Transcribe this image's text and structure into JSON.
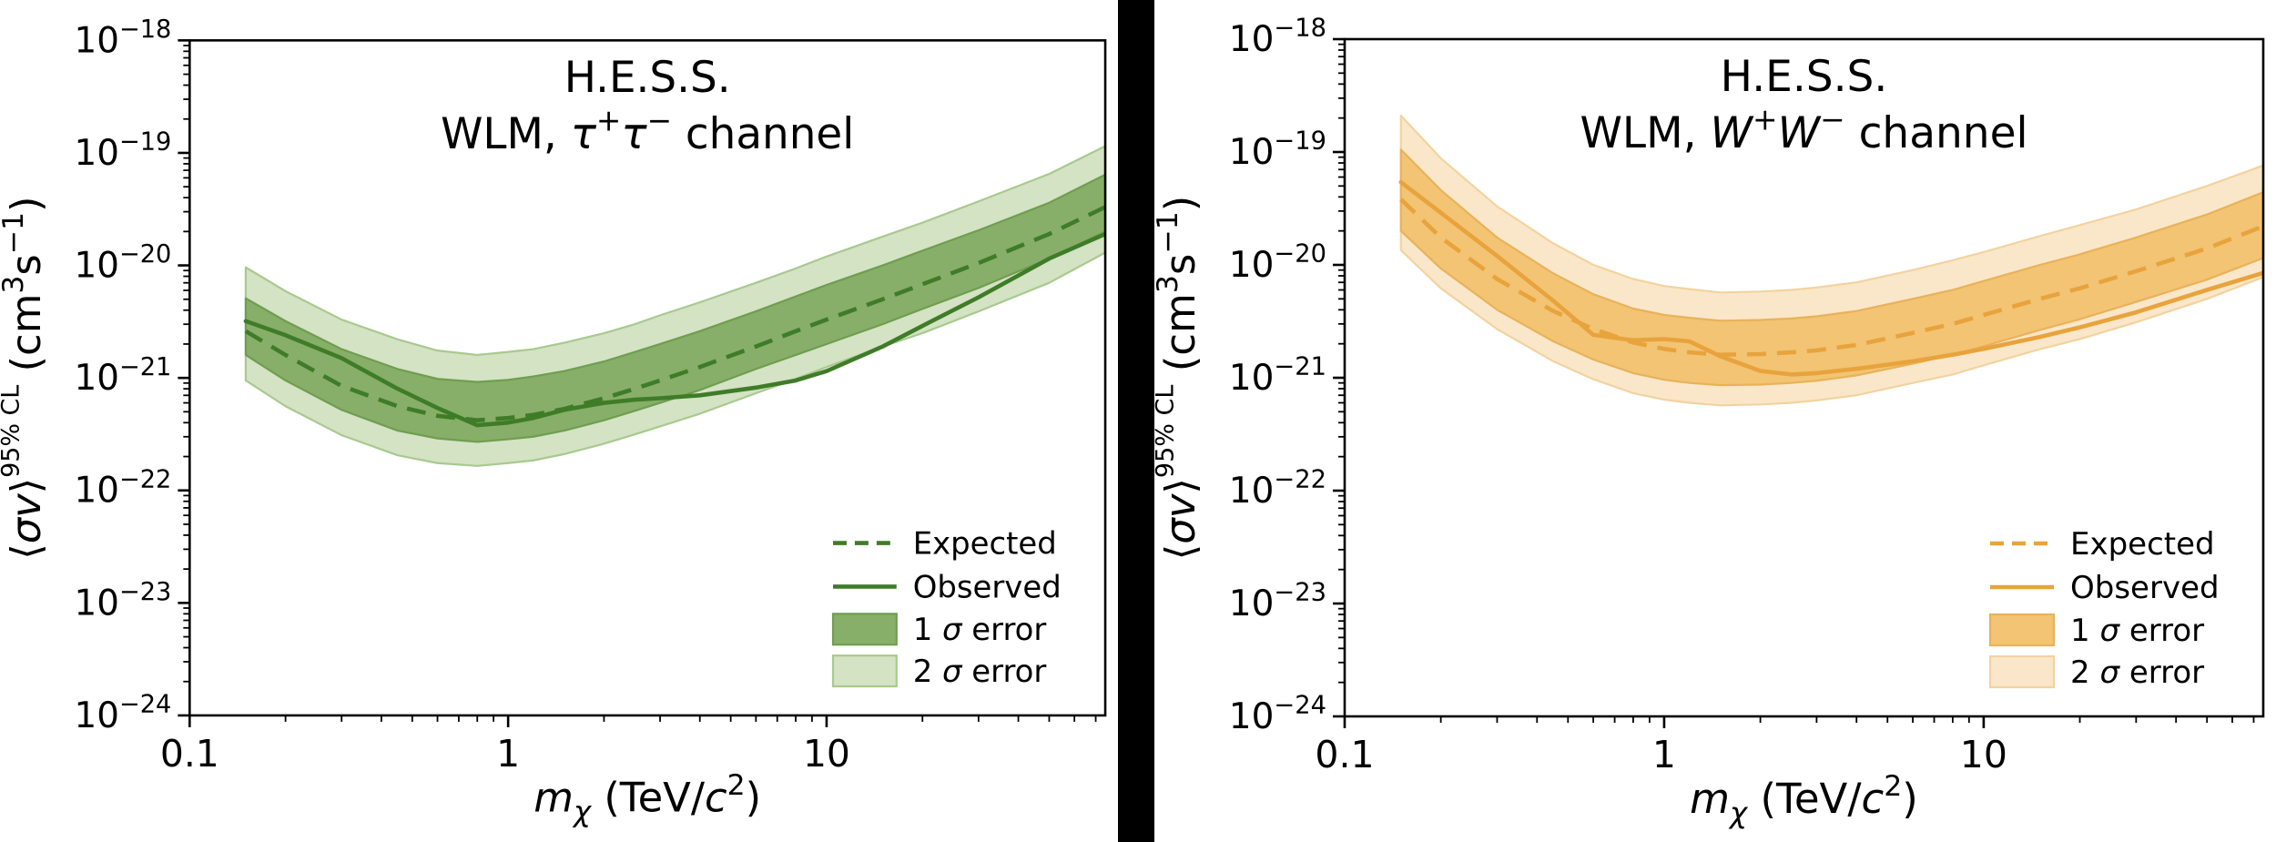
{
  "figure": {
    "background": "#ffffff",
    "divider_color": "#000000"
  },
  "shared": {
    "xlim": [
      0.1,
      75
    ],
    "ylim_exp": [
      -24,
      -18
    ],
    "x_ticks": [
      {
        "value": 0.1,
        "label": "0.1"
      },
      {
        "value": 1,
        "label": "1"
      },
      {
        "value": 10,
        "label": "10"
      }
    ],
    "y_ticks": [
      {
        "exp": -18,
        "base": "10",
        "sup": "−18"
      },
      {
        "exp": -19,
        "base": "10",
        "sup": "−19"
      },
      {
        "exp": -20,
        "base": "10",
        "sup": "−20"
      },
      {
        "exp": -21,
        "base": "10",
        "sup": "−21"
      },
      {
        "exp": -22,
        "base": "10",
        "sup": "−22"
      },
      {
        "exp": -23,
        "base": "10",
        "sup": "−23"
      },
      {
        "exp": -24,
        "base": "10",
        "sup": "−24"
      }
    ],
    "xlabel_parts": [
      {
        "t": "m",
        "i": 1
      },
      {
        "t": "χ",
        "i": 1,
        "sub": 1
      },
      {
        "t": " (TeV/"
      },
      {
        "t": "c",
        "i": 1
      },
      {
        "t": "2",
        "sup": 1
      },
      {
        "t": ")"
      }
    ],
    "ylabel_parts": [
      {
        "t": "⟨"
      },
      {
        "t": "σv",
        "i": 1
      },
      {
        "t": "⟩"
      },
      {
        "t": "95% CL",
        "sup": 1,
        "small": 1
      },
      {
        "t": " (cm"
      },
      {
        "t": "3",
        "sup": 1
      },
      {
        "t": "s"
      },
      {
        "t": "−1",
        "sup": 1
      },
      {
        "t": ")"
      }
    ],
    "legend_labels": [
      "Expected",
      "Observed",
      "1 σ error",
      "2 σ error"
    ],
    "axis_color": "#000000"
  },
  "chart_data": [
    {
      "type": "line",
      "id": "tau-tau",
      "title": "H.E.S.S.",
      "subtitle": "WLM, τ⁺τ⁻ channel",
      "title_line2_parts": [
        {
          "t": "WLM, "
        },
        {
          "t": "τ",
          "i": 1
        },
        {
          "t": "+",
          "sup": 1
        },
        {
          "t": "τ",
          "i": 1
        },
        {
          "t": "−",
          "sup": 1
        },
        {
          "t": "  channel"
        }
      ],
      "xlabel": "m_chi (TeV/c^2)",
      "ylabel": "<sigma v>^95% CL (cm^3 s^-1)",
      "legend_position": "lower right",
      "grid": false,
      "x_log": true,
      "y_log": true,
      "colors": {
        "line": "#3f7c28",
        "sigma1_fill": "#87af69",
        "sigma1_edge": "#6f9e4f",
        "sigma2_fill": "#d3e3c4",
        "sigma2_edge": "#a9c98f"
      },
      "x_mass_tev": [
        0.15,
        0.2,
        0.3,
        0.45,
        0.6,
        0.8,
        1.0,
        1.2,
        1.5,
        2,
        2.5,
        3,
        4,
        6,
        8,
        10,
        15,
        20,
        30,
        50,
        75
      ],
      "series": [
        {
          "name": "Expected",
          "style": "dashed",
          "values": [
            2.6e-21,
            1.6e-21,
            8.5e-22,
            5.6e-22,
            4.6e-22,
            4.2e-22,
            4.4e-22,
            4.7e-22,
            5.3e-22,
            6.6e-22,
            8e-22,
            9.5e-22,
            1.25e-21,
            1.9e-21,
            2.6e-21,
            3.3e-21,
            5e-21,
            6.8e-21,
            1.05e-20,
            1.9e-20,
            3.3e-20
          ]
        },
        {
          "name": "Observed",
          "style": "solid",
          "values": [
            3.2e-21,
            2.4e-21,
            1.5e-21,
            8e-22,
            5.4e-22,
            3.8e-22,
            4e-22,
            4.4e-22,
            5.2e-22,
            6e-22,
            6.4e-22,
            6.6e-22,
            7e-22,
            8.2e-22,
            9.5e-22,
            1.15e-21,
            1.9e-21,
            2.9e-21,
            5.2e-21,
            1.15e-20,
            1.9e-20
          ]
        },
        {
          "name": "1 sigma upper",
          "style": "band1-edge",
          "values": [
            5.1e-21,
            3.2e-21,
            1.8e-21,
            1.2e-21,
            9.8e-22,
            9.2e-22,
            9.6e-22,
            1.03e-21,
            1.15e-21,
            1.4e-21,
            1.7e-21,
            2e-21,
            2.6e-21,
            3.9e-21,
            5.3e-21,
            6.7e-21,
            1e-20,
            1.35e-20,
            2.05e-20,
            3.6e-20,
            6.4e-20
          ]
        },
        {
          "name": "1 sigma lower",
          "style": "band1-edge",
          "values": [
            1.6e-21,
            9.5e-22,
            5.2e-22,
            3.4e-22,
            2.9e-22,
            2.7e-22,
            2.85e-22,
            3e-22,
            3.4e-22,
            4.2e-22,
            5.1e-22,
            6e-22,
            7.8e-22,
            1.2e-21,
            1.6e-21,
            2e-21,
            3e-21,
            4.1e-21,
            6.3e-21,
            1.15e-20,
            2e-20
          ]
        },
        {
          "name": "2 sigma upper",
          "style": "band2-edge",
          "values": [
            9.6e-21,
            5.9e-21,
            3.3e-21,
            2.2e-21,
            1.75e-21,
            1.6e-21,
            1.7e-21,
            1.8e-21,
            2.05e-21,
            2.5e-21,
            3e-21,
            3.6e-21,
            4.7e-21,
            7e-21,
            9.4e-21,
            1.2e-20,
            1.8e-20,
            2.4e-20,
            3.7e-20,
            6.5e-20,
            1.15e-19
          ]
        },
        {
          "name": "2 sigma lower",
          "style": "band2-edge",
          "values": [
            9.5e-22,
            5.6e-22,
            3.1e-22,
            2.05e-22,
            1.75e-22,
            1.65e-22,
            1.75e-22,
            1.85e-22,
            2.1e-22,
            2.6e-22,
            3.15e-22,
            3.7e-22,
            4.8e-22,
            7.3e-22,
            9.8e-22,
            1.25e-21,
            1.9e-21,
            2.5e-21,
            3.9e-21,
            7e-21,
            1.3e-20
          ]
        }
      ]
    },
    {
      "type": "line",
      "id": "w-w",
      "title": "H.E.S.S.",
      "subtitle": "WLM, W⁺W⁻ channel",
      "title_line2_parts": [
        {
          "t": "WLM, "
        },
        {
          "t": "W",
          "i": 1
        },
        {
          "t": "+",
          "sup": 1
        },
        {
          "t": "W",
          "i": 1
        },
        {
          "t": "−",
          "sup": 1
        },
        {
          "t": "  channel"
        }
      ],
      "xlabel": "m_chi (TeV/c^2)",
      "ylabel": "<sigma v>^95% CL (cm^3 s^-1)",
      "legend_position": "lower right",
      "grid": false,
      "x_log": true,
      "y_log": true,
      "colors": {
        "line": "#e8a33c",
        "sigma1_fill": "#f2c474",
        "sigma1_edge": "#e9b25a",
        "sigma2_fill": "#fae7c9",
        "sigma2_edge": "#f2d3a0"
      },
      "x_mass_tev": [
        0.15,
        0.2,
        0.3,
        0.45,
        0.6,
        0.8,
        1.0,
        1.2,
        1.5,
        2,
        2.5,
        3,
        4,
        6,
        8,
        10,
        15,
        20,
        30,
        50,
        75
      ],
      "series": [
        {
          "name": "Expected",
          "style": "dashed",
          "values": [
            3.8e-20,
            1.75e-20,
            7.5e-21,
            3.9e-21,
            2.7e-21,
            2.05e-21,
            1.8e-21,
            1.68e-21,
            1.6e-21,
            1.62e-21,
            1.68e-21,
            1.75e-21,
            1.95e-21,
            2.5e-21,
            3e-21,
            3.6e-21,
            5e-21,
            6.2e-21,
            8.8e-21,
            1.4e-20,
            2.2e-20
          ]
        },
        {
          "name": "Observed",
          "style": "solid",
          "values": [
            5.4e-20,
            2.9e-20,
            1.2e-20,
            4.8e-21,
            2.4e-21,
            2.15e-21,
            2.2e-21,
            2.1e-21,
            1.55e-21,
            1.15e-21,
            1.07e-21,
            1.1e-21,
            1.2e-21,
            1.4e-21,
            1.6e-21,
            1.8e-21,
            2.3e-21,
            2.8e-21,
            3.8e-21,
            6e-21,
            8.5e-21
          ]
        },
        {
          "name": "1 sigma upper",
          "style": "band1-edge",
          "values": [
            1.05e-19,
            4.6e-20,
            1.75e-20,
            8.4e-21,
            5.5e-21,
            4.1e-21,
            3.6e-21,
            3.4e-21,
            3.2e-21,
            3.25e-21,
            3.35e-21,
            3.5e-21,
            3.9e-21,
            5e-21,
            6e-21,
            7.2e-21,
            1e-20,
            1.24e-20,
            1.75e-20,
            2.8e-20,
            4.4e-20
          ]
        },
        {
          "name": "1 sigma lower",
          "style": "band1-edge",
          "values": [
            2e-20,
            9.3e-21,
            4e-21,
            2.1e-21,
            1.45e-21,
            1.1e-21,
            9.6e-22,
            9e-22,
            8.6e-22,
            8.7e-22,
            9e-22,
            9.4e-22,
            1.05e-21,
            1.33e-21,
            1.6e-21,
            1.9e-21,
            2.65e-21,
            3.3e-21,
            4.7e-21,
            7.4e-21,
            1.15e-20
          ]
        },
        {
          "name": "2 sigma upper",
          "style": "band2-edge",
          "values": [
            2.1e-19,
            8.8e-20,
            3.3e-20,
            1.55e-20,
            1e-20,
            7.5e-21,
            6.5e-21,
            6.1e-21,
            5.7e-21,
            5.8e-21,
            6e-21,
            6.3e-21,
            7e-21,
            9e-21,
            1.1e-20,
            1.3e-20,
            1.8e-20,
            2.25e-20,
            3.1e-20,
            5e-20,
            7.6e-20
          ]
        },
        {
          "name": "2 sigma lower",
          "style": "band2-edge",
          "values": [
            1.35e-20,
            6.2e-21,
            2.7e-21,
            1.4e-21,
            9.7e-22,
            7.3e-22,
            6.4e-22,
            6e-22,
            5.7e-22,
            5.8e-22,
            6e-22,
            6.3e-22,
            7e-22,
            9e-22,
            1.07e-21,
            1.29e-21,
            1.79e-21,
            2.2e-21,
            3.1e-21,
            5e-21,
            7.8e-21
          ]
        }
      ]
    }
  ]
}
